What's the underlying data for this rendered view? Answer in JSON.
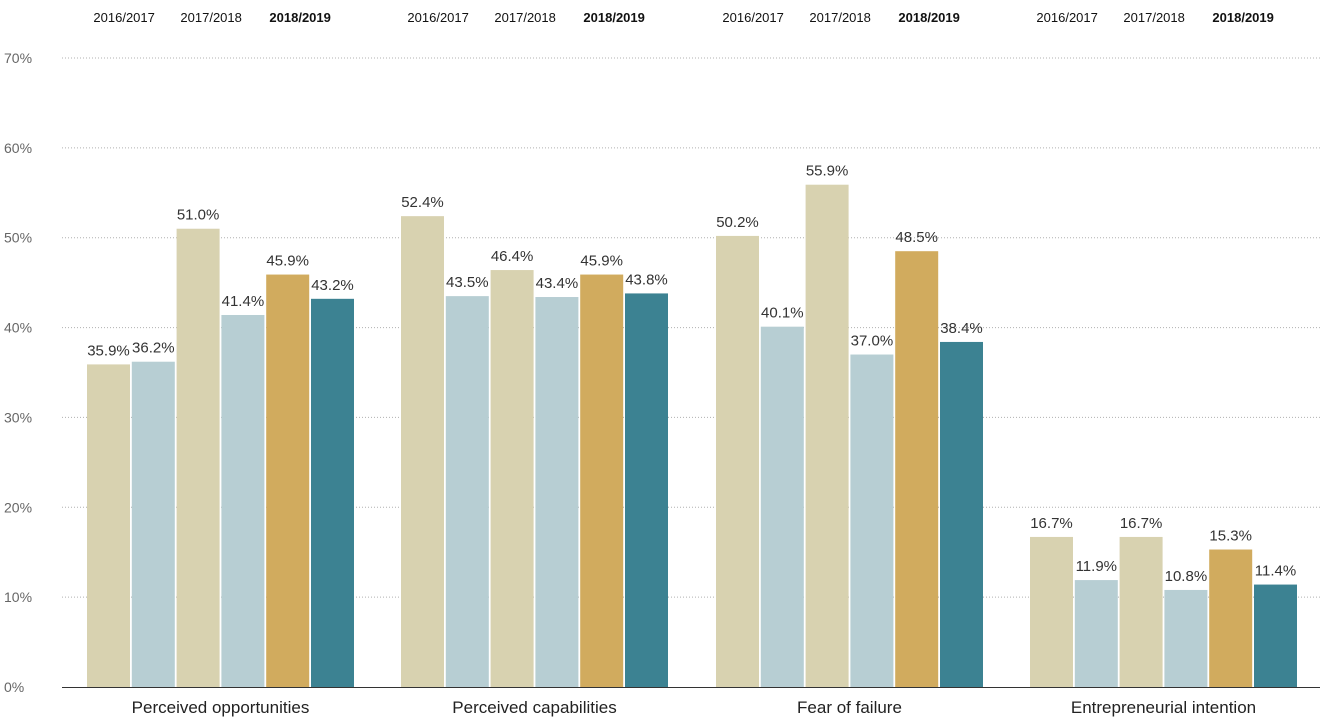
{
  "chart_data": {
    "type": "bar",
    "categories": [
      "Perceived opportunities",
      "Perceived capabilities",
      "Fear of failure",
      "Entrepreneurial intention"
    ],
    "period_labels": [
      "2016/2017",
      "2017/2018",
      "2018/2019"
    ],
    "bold_period": "2018/2019",
    "series": [
      {
        "color": "#d8d2b0",
        "values": [
          35.9,
          52.4,
          50.2,
          16.7
        ]
      },
      {
        "color": "#b7ced3",
        "values": [
          36.2,
          43.5,
          40.1,
          11.9
        ]
      },
      {
        "color": "#d8d2b0",
        "values": [
          51.0,
          46.4,
          55.9,
          16.7
        ]
      },
      {
        "color": "#b7ced3",
        "values": [
          41.4,
          43.4,
          37.0,
          10.8
        ]
      },
      {
        "color": "#d1ab5e",
        "values": [
          45.9,
          45.9,
          48.5,
          15.3
        ]
      },
      {
        "color": "#3c8292",
        "values": [
          43.2,
          43.8,
          38.4,
          11.4
        ]
      }
    ],
    "value_labels": [
      [
        "35.9%",
        "36.2%",
        "51.0%",
        "41.4%",
        "45.9%",
        "43.2%"
      ],
      [
        "52.4%",
        "43.5%",
        "46.4%",
        "43.4%",
        "45.9%",
        "43.8%"
      ],
      [
        "50.2%",
        "40.1%",
        "55.9%",
        "37.0%",
        "48.5%",
        "38.4%"
      ],
      [
        "16.7%",
        "11.9%",
        "16.7%",
        "10.8%",
        "15.3%",
        "11.4%"
      ]
    ],
    "yticks": [
      0,
      10,
      20,
      30,
      40,
      50,
      60,
      70
    ],
    "ytick_labels": [
      "0%",
      "10%",
      "20%",
      "30%",
      "40%",
      "50%",
      "60%",
      "70%"
    ],
    "ylim": [
      0,
      70
    ],
    "grid": true,
    "legend": "top, per category group"
  }
}
